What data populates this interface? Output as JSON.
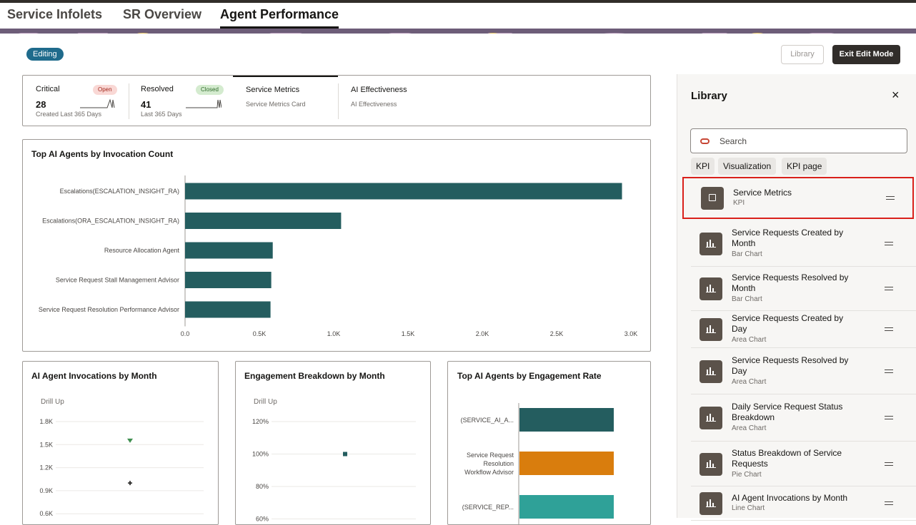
{
  "tabs": [
    {
      "label": "Service Infolets"
    },
    {
      "label": "SR Overview"
    },
    {
      "label": "Agent Performance"
    }
  ],
  "editing_badge": "Editing",
  "buttons": {
    "library": "Library",
    "exit_edit": "Exit Edit Mode"
  },
  "kpis": [
    {
      "label": "Critical",
      "pill": "Open",
      "value": "28",
      "sub": "Created Last 365 Days"
    },
    {
      "label": "Resolved",
      "pill": "Closed",
      "value": "41",
      "sub": "Last 365 Days"
    },
    {
      "label": "Service Metrics",
      "sub": "Service Metrics Card"
    },
    {
      "label": "AI Effectiveness",
      "sub": "AI Effectiveness"
    }
  ],
  "chart_data": [
    {
      "type": "bar",
      "title": "Top AI Agents by Invocation Count",
      "orientation": "horizontal",
      "categories": [
        "Escalations(ESCALATION_INSIGHT_RA)",
        "Escalations(ORA_ESCALATION_INSIGHT_RA)",
        "Resource Allocation Agent",
        "Service Request Stall Management Advisor",
        "Service Request Resolution Performance Advisor"
      ],
      "values": [
        2940,
        1050,
        590,
        580,
        575
      ],
      "xlim": [
        0,
        3000
      ],
      "xticks": [
        "0.0",
        "0.5K",
        "1.0K",
        "1.5K",
        "2.0K",
        "2.5K",
        "3.0K"
      ],
      "color": "#245d5f"
    },
    {
      "type": "line",
      "title": "AI Agent Invocations by Month",
      "drill": "Drill Up",
      "yticks": [
        "1.8K",
        "1.5K",
        "1.2K",
        "0.9K",
        "0.6K"
      ],
      "ylim": [
        600,
        1800
      ],
      "points": [
        {
          "y": 1550,
          "marker": "triangle-down",
          "color": "#3f8f4f"
        },
        {
          "y": 1000,
          "marker": "plus",
          "color": "#161513"
        }
      ]
    },
    {
      "type": "line",
      "title": "Engagement Breakdown by Month",
      "drill": "Drill Up",
      "yticks": [
        "120%",
        "100%",
        "80%",
        "60%"
      ],
      "ylim": [
        60,
        120
      ],
      "points": [
        {
          "y": 100,
          "marker": "square",
          "color": "#245d5f"
        }
      ]
    },
    {
      "type": "bar",
      "title": "Top AI Agents by Engagement Rate",
      "orientation": "horizontal",
      "categories": [
        "(SERVICE_AI_A...",
        "Service Request Resolution Workflow Advisor",
        "(SERVICE_REP..."
      ],
      "colors": [
        "#245d5f",
        "#d97d0d",
        "#2fa198"
      ]
    }
  ],
  "library": {
    "title": "Library",
    "close": "×",
    "search_placeholder": "Search",
    "chips": [
      "KPI",
      "Visualization",
      "KPI page"
    ],
    "items": [
      {
        "name": "Service Metrics",
        "type": "KPI",
        "icon": "kpi-icon",
        "selected": true
      },
      {
        "name": "Service Requests Created by Month",
        "type": "Bar Chart",
        "icon": "bar-chart-icon"
      },
      {
        "name": "Service Requests Resolved by Month",
        "type": "Bar Chart",
        "icon": "bar-chart-icon"
      },
      {
        "name": "Service Requests Created by Day",
        "type": "Area Chart",
        "icon": "area-chart-icon"
      },
      {
        "name": "Service Requests Resolved by Day",
        "type": "Area Chart",
        "icon": "area-chart-icon"
      },
      {
        "name": "Daily Service Request Status Breakdown",
        "type": "Area Chart",
        "icon": "area-chart-icon"
      },
      {
        "name": "Status Breakdown of Service Requests",
        "type": "Pie Chart",
        "icon": "pie-chart-icon"
      },
      {
        "name": "AI Agent Invocations by Month",
        "type": "Line Chart",
        "icon": "line-chart-icon"
      }
    ]
  },
  "colors": {
    "accent": "#245d5f",
    "highlight": "#d9201a",
    "badge": "#1f6b8c",
    "dark_button": "#312d2a"
  }
}
